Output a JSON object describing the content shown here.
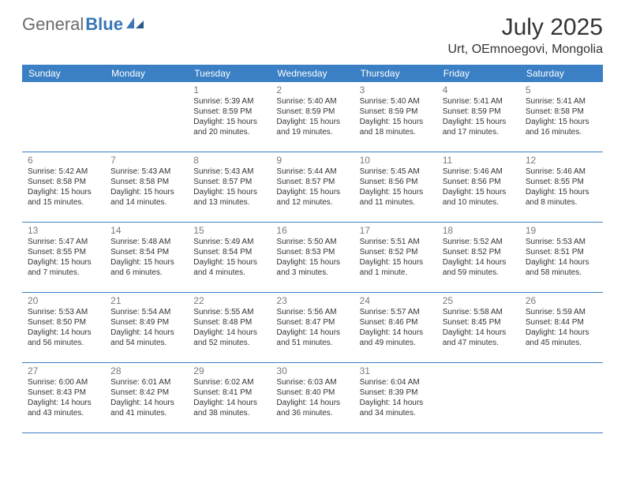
{
  "brand": {
    "part1": "General",
    "part2": "Blue"
  },
  "title": "July 2025",
  "location": "Urt, OEmnoegovi, Mongolia",
  "day_headers": [
    "Sunday",
    "Monday",
    "Tuesday",
    "Wednesday",
    "Thursday",
    "Friday",
    "Saturday"
  ],
  "header_bg": "#3b7fc4",
  "header_fg": "#ffffff",
  "border_color": "#3b7fc4",
  "text_color": "#333333",
  "daynum_color": "#7a7a7a",
  "logo_gray": "#6b6b6b",
  "logo_blue": "#3a78b5",
  "weeks": [
    [
      null,
      null,
      {
        "n": "1",
        "sr": "5:39 AM",
        "ss": "8:59 PM",
        "dl": "15 hours and 20 minutes."
      },
      {
        "n": "2",
        "sr": "5:40 AM",
        "ss": "8:59 PM",
        "dl": "15 hours and 19 minutes."
      },
      {
        "n": "3",
        "sr": "5:40 AM",
        "ss": "8:59 PM",
        "dl": "15 hours and 18 minutes."
      },
      {
        "n": "4",
        "sr": "5:41 AM",
        "ss": "8:59 PM",
        "dl": "15 hours and 17 minutes."
      },
      {
        "n": "5",
        "sr": "5:41 AM",
        "ss": "8:58 PM",
        "dl": "15 hours and 16 minutes."
      }
    ],
    [
      {
        "n": "6",
        "sr": "5:42 AM",
        "ss": "8:58 PM",
        "dl": "15 hours and 15 minutes."
      },
      {
        "n": "7",
        "sr": "5:43 AM",
        "ss": "8:58 PM",
        "dl": "15 hours and 14 minutes."
      },
      {
        "n": "8",
        "sr": "5:43 AM",
        "ss": "8:57 PM",
        "dl": "15 hours and 13 minutes."
      },
      {
        "n": "9",
        "sr": "5:44 AM",
        "ss": "8:57 PM",
        "dl": "15 hours and 12 minutes."
      },
      {
        "n": "10",
        "sr": "5:45 AM",
        "ss": "8:56 PM",
        "dl": "15 hours and 11 minutes."
      },
      {
        "n": "11",
        "sr": "5:46 AM",
        "ss": "8:56 PM",
        "dl": "15 hours and 10 minutes."
      },
      {
        "n": "12",
        "sr": "5:46 AM",
        "ss": "8:55 PM",
        "dl": "15 hours and 8 minutes."
      }
    ],
    [
      {
        "n": "13",
        "sr": "5:47 AM",
        "ss": "8:55 PM",
        "dl": "15 hours and 7 minutes."
      },
      {
        "n": "14",
        "sr": "5:48 AM",
        "ss": "8:54 PM",
        "dl": "15 hours and 6 minutes."
      },
      {
        "n": "15",
        "sr": "5:49 AM",
        "ss": "8:54 PM",
        "dl": "15 hours and 4 minutes."
      },
      {
        "n": "16",
        "sr": "5:50 AM",
        "ss": "8:53 PM",
        "dl": "15 hours and 3 minutes."
      },
      {
        "n": "17",
        "sr": "5:51 AM",
        "ss": "8:52 PM",
        "dl": "15 hours and 1 minute."
      },
      {
        "n": "18",
        "sr": "5:52 AM",
        "ss": "8:52 PM",
        "dl": "14 hours and 59 minutes."
      },
      {
        "n": "19",
        "sr": "5:53 AM",
        "ss": "8:51 PM",
        "dl": "14 hours and 58 minutes."
      }
    ],
    [
      {
        "n": "20",
        "sr": "5:53 AM",
        "ss": "8:50 PM",
        "dl": "14 hours and 56 minutes."
      },
      {
        "n": "21",
        "sr": "5:54 AM",
        "ss": "8:49 PM",
        "dl": "14 hours and 54 minutes."
      },
      {
        "n": "22",
        "sr": "5:55 AM",
        "ss": "8:48 PM",
        "dl": "14 hours and 52 minutes."
      },
      {
        "n": "23",
        "sr": "5:56 AM",
        "ss": "8:47 PM",
        "dl": "14 hours and 51 minutes."
      },
      {
        "n": "24",
        "sr": "5:57 AM",
        "ss": "8:46 PM",
        "dl": "14 hours and 49 minutes."
      },
      {
        "n": "25",
        "sr": "5:58 AM",
        "ss": "8:45 PM",
        "dl": "14 hours and 47 minutes."
      },
      {
        "n": "26",
        "sr": "5:59 AM",
        "ss": "8:44 PM",
        "dl": "14 hours and 45 minutes."
      }
    ],
    [
      {
        "n": "27",
        "sr": "6:00 AM",
        "ss": "8:43 PM",
        "dl": "14 hours and 43 minutes."
      },
      {
        "n": "28",
        "sr": "6:01 AM",
        "ss": "8:42 PM",
        "dl": "14 hours and 41 minutes."
      },
      {
        "n": "29",
        "sr": "6:02 AM",
        "ss": "8:41 PM",
        "dl": "14 hours and 38 minutes."
      },
      {
        "n": "30",
        "sr": "6:03 AM",
        "ss": "8:40 PM",
        "dl": "14 hours and 36 minutes."
      },
      {
        "n": "31",
        "sr": "6:04 AM",
        "ss": "8:39 PM",
        "dl": "14 hours and 34 minutes."
      },
      null,
      null
    ]
  ]
}
